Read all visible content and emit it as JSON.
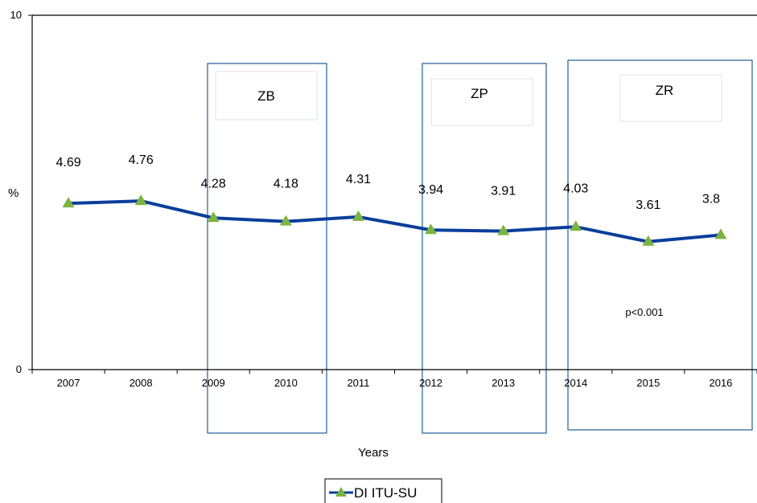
{
  "chart_data": {
    "type": "line",
    "title": "",
    "xlabel": "Years",
    "ylabel": "%",
    "ylim": [
      0,
      10
    ],
    "y_ticks": [
      "0",
      "10"
    ],
    "categories": [
      "2007",
      "2008",
      "2009",
      "2010",
      "2011",
      "2012",
      "2013",
      "2014",
      "2015",
      "2016"
    ],
    "series": [
      {
        "name": "DI ITU-SU",
        "values": [
          4.69,
          4.76,
          4.28,
          4.18,
          4.31,
          3.94,
          3.91,
          4.03,
          3.61,
          3.8
        ],
        "labels": [
          "4.69",
          "4.76",
          "4.28",
          "4.18",
          "4.31",
          "3.94",
          "3.91",
          "4.03",
          "3.61",
          "3.8"
        ],
        "line_color": "#0a3e9c",
        "marker_color": "#7cb342",
        "marker": "triangle"
      }
    ],
    "zones": [
      {
        "label": "ZB",
        "from": "2009",
        "to": "2010"
      },
      {
        "label": "ZP",
        "from": "2012",
        "to": "2013"
      },
      {
        "label": "ZR",
        "from": "2014",
        "to": "2016"
      }
    ],
    "annotation": "p<0.001",
    "legend": {
      "placement": "bottom-center",
      "entries": [
        "DI ITU-SU"
      ]
    },
    "grid": false
  }
}
